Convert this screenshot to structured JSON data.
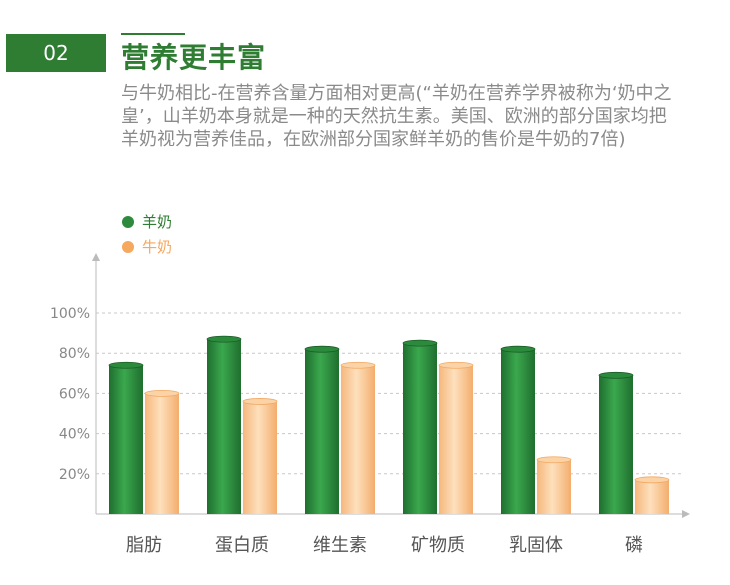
{
  "header": {
    "number": "02",
    "title": "营养更丰富",
    "description": "与牛奶相比-在营养含量方面相对更高(“羊奶在营养学界被称为‘奶中之皇’，山羊奶本身就是一种的天然抗生素。美国、欧洲的部分国家均把羊奶视为营养佳品，在欧洲部分国家鲜羊奶的售价是牛奶的7倍)"
  },
  "colors": {
    "accent": "#2e7d32",
    "goat": "#2e8b3e",
    "cow": "#f5a85e",
    "text_gray": "#8a8a8a"
  },
  "chart_data": {
    "type": "bar",
    "categories": [
      "脂肪",
      "蛋白质",
      "维生素",
      "矿物质",
      "乳固体",
      "磷"
    ],
    "series": [
      {
        "name": "羊奶",
        "values": [
          74,
          87,
          82,
          85,
          82,
          69
        ]
      },
      {
        "name": "牛奶",
        "values": [
          60,
          56,
          74,
          74,
          27,
          17
        ]
      }
    ],
    "yticks": [
      "20%",
      "40%",
      "60%",
      "80%",
      "100%"
    ],
    "ylim": [
      0,
      100
    ],
    "grid": true,
    "legend": "top-left"
  }
}
